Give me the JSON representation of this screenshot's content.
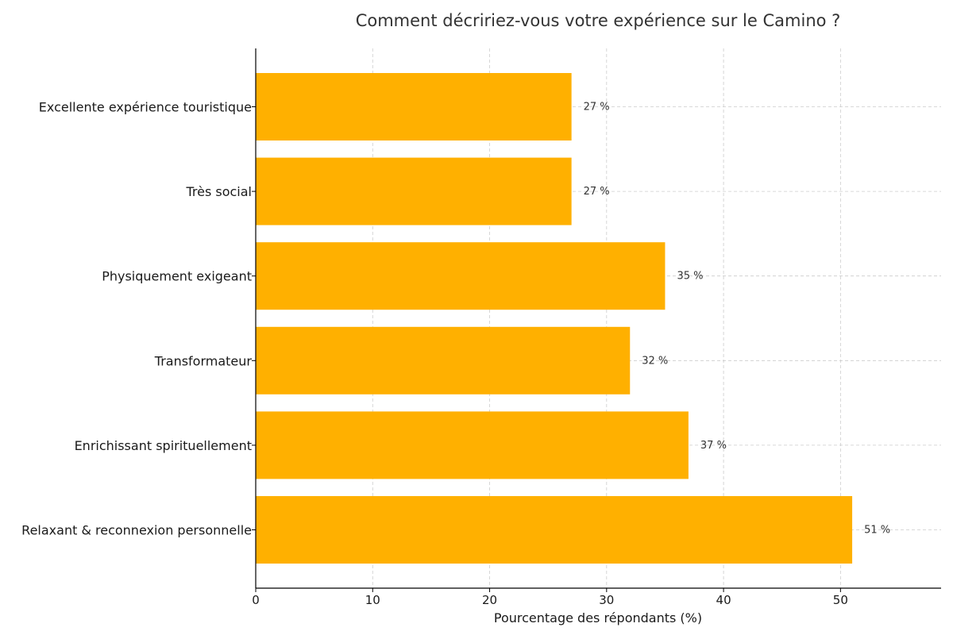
{
  "chart_data": {
    "type": "bar",
    "orientation": "horizontal",
    "title": "Comment décririez-vous votre expérience sur le Camino ?",
    "xlabel": "Pourcentage des répondants (%)",
    "ylabel": "",
    "categories": [
      "Excellente expérience touristique",
      "Très social",
      "Physiquement exigeant",
      "Transformateur",
      "Enrichissant spirituellement",
      "Relaxant & reconnexion personnelle"
    ],
    "values": [
      27,
      27,
      35,
      32,
      37,
      51
    ],
    "data_labels": [
      "27 %",
      "27 %",
      "35 %",
      "32 %",
      "37 %",
      "51 %"
    ],
    "xlim": [
      0,
      58.6
    ],
    "xticks": [
      0,
      10,
      20,
      30,
      40,
      50
    ],
    "grid": true,
    "bar_color": "#ffb000"
  }
}
